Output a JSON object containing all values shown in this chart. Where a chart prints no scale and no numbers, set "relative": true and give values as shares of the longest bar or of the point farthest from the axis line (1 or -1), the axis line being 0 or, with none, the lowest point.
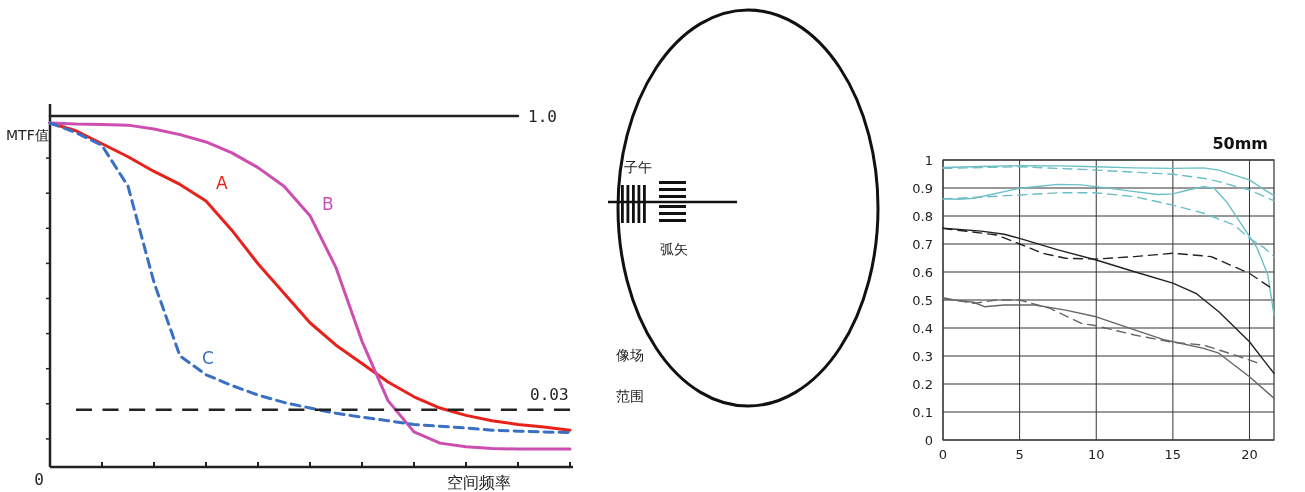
{
  "chart_data": [
    {
      "type": "line",
      "relative": true,
      "xlabel": "空间频率",
      "ylabel": "MTF值",
      "annotations": [
        "0",
        "1.0",
        "0.03"
      ],
      "categories": [
        null,
        null,
        null,
        null,
        null,
        null,
        null,
        null,
        null,
        null,
        null,
        null,
        null,
        null,
        null,
        null,
        null,
        null,
        null,
        null,
        null
      ],
      "series": [
        {
          "name": "A",
          "color": "#e8221b",
          "line_style": "solid",
          "values": [
            0.98,
            0.958,
            0.921,
            0.884,
            0.842,
            0.805,
            0.758,
            0.674,
            0.579,
            0.495,
            0.411,
            0.347,
            0.295,
            0.242,
            0.2,
            0.168,
            0.147,
            0.132,
            0.121,
            0.114,
            0.105
          ]
        },
        {
          "name": "B",
          "color": "#cc4fb0",
          "line_style": "solid",
          "values": [
            0.98,
            0.977,
            0.976,
            0.974,
            0.963,
            0.947,
            0.926,
            0.895,
            0.853,
            0.8,
            0.716,
            0.568,
            0.358,
            0.189,
            0.1,
            0.068,
            0.058,
            0.053,
            0.051,
            0.051,
            0.051
          ]
        },
        {
          "name": "C",
          "color": "#3a6fc4",
          "line_style": "dashed",
          "values": [
            0.98,
            0.953,
            0.916,
            0.8,
            0.526,
            0.316,
            0.263,
            0.232,
            0.205,
            0.184,
            0.168,
            0.153,
            0.142,
            0.132,
            0.121,
            0.116,
            0.111,
            0.105,
            0.102,
            0.1,
            0.098
          ]
        },
        {
          "color": "#222222",
          "line_style": "solid",
          "values": [
            1,
            1,
            1,
            1,
            1,
            1,
            1,
            1,
            1,
            1,
            1,
            1,
            1,
            1,
            1,
            1,
            1,
            1,
            1,
            null,
            null
          ]
        },
        {
          "color": "#222222",
          "line_style": "dashed",
          "values": [
            null,
            0.163,
            0.163,
            0.163,
            0.163,
            0.163,
            0.163,
            0.163,
            0.163,
            0.163,
            0.163,
            0.163,
            0.163,
            0.163,
            0.163,
            0.163,
            0.163,
            0.163,
            0.163,
            0.163,
            0.163
          ]
        }
      ]
    },
    {
      "type": "other",
      "annotations": [
        "子午",
        "弧矢",
        "像场",
        "范围"
      ]
    },
    {
      "type": "line",
      "title": "50mm",
      "grid": true,
      "xlim": [
        0,
        21.6
      ],
      "xticks": [
        0,
        5,
        10,
        15,
        20
      ],
      "ylim": [
        0,
        1
      ],
      "yticks": [
        0,
        0.1,
        0.2,
        0.3,
        0.4,
        0.5,
        0.6,
        0.7,
        0.8,
        0.9,
        1
      ],
      "series": [
        {
          "color": "#6bbfc6",
          "line_style": "solid",
          "x": [
            0,
            2.5,
            5,
            7.5,
            10,
            12.5,
            15,
            17,
            18,
            19,
            20,
            21,
            21.6
          ],
          "values": [
            0.973,
            0.977,
            0.98,
            0.979,
            0.976,
            0.972,
            0.97,
            0.972,
            0.964,
            0.946,
            0.929,
            0.893,
            0.873
          ]
        },
        {
          "color": "#6bbfc6",
          "line_style": "dashed",
          "x": [
            0,
            5,
            10,
            15,
            17,
            18,
            19,
            20,
            21,
            21.6
          ],
          "values": [
            0.97,
            0.976,
            0.964,
            0.949,
            0.935,
            0.923,
            0.907,
            0.893,
            0.869,
            0.854
          ]
        },
        {
          "color": "#6bbfc6",
          "line_style": "solid",
          "x": [
            0,
            1,
            2,
            3,
            5,
            7.5,
            9,
            10,
            12.5,
            14,
            15,
            16,
            17,
            17.7,
            18.5,
            19.5,
            20.5,
            21.2,
            21.6
          ],
          "values": [
            0.861,
            0.86,
            0.863,
            0.875,
            0.899,
            0.913,
            0.911,
            0.905,
            0.887,
            0.877,
            0.879,
            0.893,
            0.905,
            0.899,
            0.851,
            0.768,
            0.685,
            0.589,
            0.446
          ]
        },
        {
          "color": "#6bbfc6",
          "line_style": "dashed",
          "x": [
            0,
            3,
            5,
            7.5,
            10,
            12.5,
            15,
            17,
            19,
            20,
            21,
            21.6
          ],
          "values": [
            0.861,
            0.869,
            0.875,
            0.883,
            0.883,
            0.869,
            0.839,
            0.81,
            0.768,
            0.72,
            0.685,
            0.655
          ]
        },
        {
          "color": "#222222",
          "line_style": "solid",
          "x": [
            0,
            2.5,
            4,
            5,
            7.5,
            10,
            12.5,
            15,
            16.5,
            18,
            20,
            21,
            21.6
          ],
          "values": [
            0.756,
            0.746,
            0.735,
            0.72,
            0.679,
            0.643,
            0.601,
            0.56,
            0.524,
            0.458,
            0.351,
            0.28,
            0.238
          ]
        },
        {
          "color": "#222222",
          "line_style": "dashed",
          "x": [
            0,
            3.5,
            5,
            6.5,
            8,
            10,
            12.5,
            15,
            17.5,
            20,
            21.6
          ],
          "values": [
            0.756,
            0.732,
            0.7,
            0.667,
            0.649,
            0.646,
            0.655,
            0.667,
            0.655,
            0.595,
            0.536
          ]
        },
        {
          "color": "#666666",
          "line_style": "solid",
          "x": [
            0,
            2,
            2.7,
            4,
            6,
            8,
            10,
            12.5,
            14.5,
            17,
            18,
            20,
            21.6
          ],
          "values": [
            0.504,
            0.492,
            0.476,
            0.482,
            0.482,
            0.464,
            0.44,
            0.393,
            0.357,
            0.327,
            0.31,
            0.226,
            0.149
          ]
        },
        {
          "color": "#666666",
          "line_style": "dashed",
          "x": [
            0,
            2,
            3.5,
            5,
            7,
            9,
            10,
            12.5,
            15,
            17,
            19,
            20.6
          ],
          "values": [
            0.508,
            0.488,
            0.5,
            0.5,
            0.47,
            0.417,
            0.408,
            0.375,
            0.349,
            0.339,
            0.304,
            0.274
          ]
        }
      ]
    }
  ]
}
